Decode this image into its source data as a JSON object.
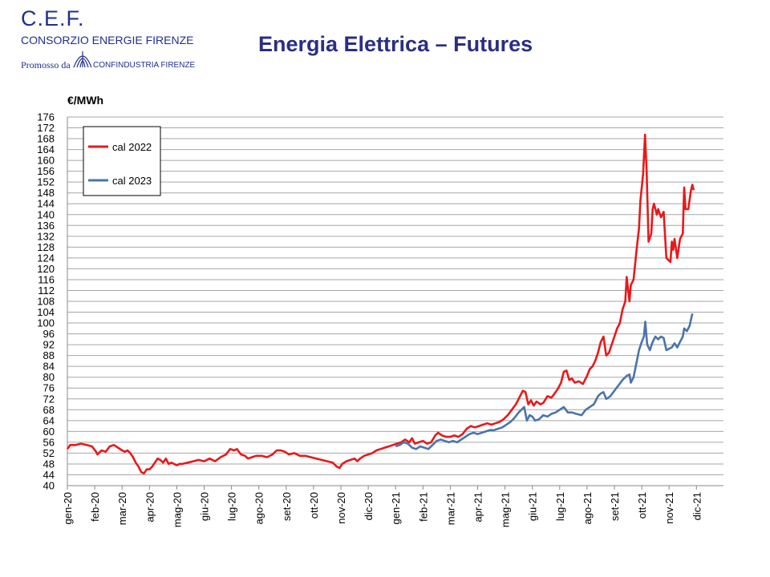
{
  "header": {
    "org_short": "C.E.F.",
    "org_full": "CONSORZIO ENERGIE FIRENZE",
    "promoted_by": "Promosso da",
    "sponsor": "CONFINDUSTRIA FIRENZE"
  },
  "slide_title": "Energia Elettrica – Futures",
  "chart_data": {
    "type": "line",
    "ylabel": "€/MWh",
    "ylim": [
      40,
      176
    ],
    "ytick_step": 4,
    "grid": true,
    "legend_position": "top-left",
    "x_ticks": [
      "gen-20",
      "feb-20",
      "mar-20",
      "apr-20",
      "mag-20",
      "giu-20",
      "lug-20",
      "ago-20",
      "set-20",
      "ott-20",
      "nov-20",
      "dic-20",
      "gen-21",
      "feb-21",
      "mar-21",
      "apr-21",
      "mag-21",
      "giu-21",
      "lug-21",
      "ago-21",
      "set-21",
      "ott-21",
      "nov-21",
      "dic-21"
    ],
    "series": [
      {
        "name": "cal 2022",
        "color": "#e8191b",
        "points": [
          [
            0,
            53.5
          ],
          [
            0.1,
            55
          ],
          [
            0.3,
            55
          ],
          [
            0.5,
            55.5
          ],
          [
            0.7,
            55
          ],
          [
            0.9,
            54.5
          ],
          [
            1.05,
            52.5
          ],
          [
            1.1,
            51.5
          ],
          [
            1.25,
            53
          ],
          [
            1.4,
            52.5
          ],
          [
            1.55,
            54.5
          ],
          [
            1.7,
            55
          ],
          [
            1.85,
            54
          ],
          [
            2.0,
            53
          ],
          [
            2.1,
            52.5
          ],
          [
            2.2,
            53
          ],
          [
            2.3,
            52
          ],
          [
            2.4,
            50.5
          ],
          [
            2.5,
            48.5
          ],
          [
            2.6,
            47
          ],
          [
            2.7,
            45
          ],
          [
            2.8,
            44.5
          ],
          [
            2.9,
            46
          ],
          [
            3.0,
            46
          ],
          [
            3.1,
            47
          ],
          [
            3.2,
            48.5
          ],
          [
            3.3,
            50
          ],
          [
            3.4,
            49.5
          ],
          [
            3.5,
            48.5
          ],
          [
            3.6,
            50
          ],
          [
            3.7,
            48
          ],
          [
            3.8,
            48.5
          ],
          [
            3.9,
            48
          ],
          [
            4.0,
            47.5
          ],
          [
            4.1,
            48
          ],
          [
            4.2,
            48
          ],
          [
            4.4,
            48.5
          ],
          [
            4.6,
            49
          ],
          [
            4.8,
            49.5
          ],
          [
            5.0,
            49
          ],
          [
            5.2,
            50
          ],
          [
            5.4,
            49
          ],
          [
            5.6,
            50.5
          ],
          [
            5.8,
            51.5
          ],
          [
            5.95,
            53.5
          ],
          [
            6.1,
            53
          ],
          [
            6.2,
            53.5
          ],
          [
            6.35,
            51.5
          ],
          [
            6.5,
            51
          ],
          [
            6.6,
            50
          ],
          [
            6.75,
            50.5
          ],
          [
            6.9,
            51
          ],
          [
            7.1,
            51
          ],
          [
            7.3,
            50.5
          ],
          [
            7.5,
            51.5
          ],
          [
            7.65,
            53
          ],
          [
            7.8,
            53
          ],
          [
            7.95,
            52.5
          ],
          [
            8.1,
            51.5
          ],
          [
            8.3,
            52
          ],
          [
            8.5,
            51
          ],
          [
            8.7,
            51
          ],
          [
            8.9,
            50.5
          ],
          [
            9.1,
            50
          ],
          [
            9.3,
            49.5
          ],
          [
            9.5,
            49
          ],
          [
            9.7,
            48.5
          ],
          [
            9.85,
            47
          ],
          [
            9.95,
            46.5
          ],
          [
            10.05,
            48
          ],
          [
            10.2,
            49
          ],
          [
            10.35,
            49.5
          ],
          [
            10.5,
            50
          ],
          [
            10.6,
            49
          ],
          [
            10.7,
            50
          ],
          [
            10.85,
            51
          ],
          [
            11.0,
            51.5
          ],
          [
            11.15,
            52
          ],
          [
            11.3,
            53
          ],
          [
            11.45,
            53.5
          ],
          [
            11.6,
            54
          ],
          [
            11.75,
            54.5
          ],
          [
            11.9,
            55
          ],
          [
            12.05,
            55.5
          ],
          [
            12.2,
            56
          ],
          [
            12.35,
            57
          ],
          [
            12.5,
            56
          ],
          [
            12.6,
            57.5
          ],
          [
            12.7,
            55.5
          ],
          [
            12.85,
            56
          ],
          [
            13.0,
            56.5
          ],
          [
            13.15,
            55.5
          ],
          [
            13.3,
            56
          ],
          [
            13.45,
            58.5
          ],
          [
            13.55,
            59.5
          ],
          [
            13.7,
            58.5
          ],
          [
            13.85,
            58
          ],
          [
            14.0,
            58
          ],
          [
            14.15,
            58.5
          ],
          [
            14.3,
            58
          ],
          [
            14.45,
            59
          ],
          [
            14.6,
            61
          ],
          [
            14.75,
            62
          ],
          [
            14.9,
            61.5
          ],
          [
            15.05,
            62
          ],
          [
            15.2,
            62.5
          ],
          [
            15.35,
            63
          ],
          [
            15.5,
            62.5
          ],
          [
            15.65,
            63
          ],
          [
            15.8,
            63.5
          ],
          [
            15.95,
            64.5
          ],
          [
            16.1,
            66
          ],
          [
            16.25,
            68
          ],
          [
            16.4,
            70
          ],
          [
            16.55,
            73
          ],
          [
            16.65,
            75
          ],
          [
            16.75,
            74.5
          ],
          [
            16.85,
            70
          ],
          [
            16.95,
            71.5
          ],
          [
            17.05,
            69.5
          ],
          [
            17.15,
            71
          ],
          [
            17.3,
            70
          ],
          [
            17.4,
            70.5
          ],
          [
            17.55,
            73
          ],
          [
            17.7,
            72.5
          ],
          [
            17.85,
            74.5
          ],
          [
            17.95,
            76
          ],
          [
            18.05,
            78
          ],
          [
            18.15,
            82
          ],
          [
            18.25,
            82.5
          ],
          [
            18.35,
            79
          ],
          [
            18.45,
            79.5
          ],
          [
            18.55,
            78
          ],
          [
            18.7,
            78.5
          ],
          [
            18.85,
            77.5
          ],
          [
            19.0,
            80.5
          ],
          [
            19.1,
            83
          ],
          [
            19.2,
            84
          ],
          [
            19.3,
            86
          ],
          [
            19.4,
            89
          ],
          [
            19.5,
            93
          ],
          [
            19.6,
            95
          ],
          [
            19.7,
            88
          ],
          [
            19.8,
            89
          ],
          [
            19.9,
            92
          ],
          [
            20.0,
            95
          ],
          [
            20.1,
            98
          ],
          [
            20.2,
            100
          ],
          [
            20.3,
            105
          ],
          [
            20.4,
            108
          ],
          [
            20.45,
            117
          ],
          [
            20.55,
            108
          ],
          [
            20.6,
            114
          ],
          [
            20.7,
            116
          ],
          [
            20.8,
            126
          ],
          [
            20.9,
            135
          ],
          [
            20.95,
            145
          ],
          [
            21.05,
            155
          ],
          [
            21.12,
            169.5
          ],
          [
            21.18,
            156
          ],
          [
            21.25,
            130
          ],
          [
            21.35,
            133
          ],
          [
            21.4,
            142
          ],
          [
            21.45,
            144
          ],
          [
            21.55,
            140
          ],
          [
            21.6,
            142
          ],
          [
            21.7,
            139
          ],
          [
            21.8,
            141
          ],
          [
            21.9,
            124
          ],
          [
            22.0,
            123
          ],
          [
            22.05,
            122.5
          ],
          [
            22.1,
            130
          ],
          [
            22.15,
            127
          ],
          [
            22.2,
            131
          ],
          [
            22.3,
            124
          ],
          [
            22.4,
            131
          ],
          [
            22.5,
            133
          ],
          [
            22.55,
            150
          ],
          [
            22.6,
            142
          ],
          [
            22.7,
            142
          ],
          [
            22.8,
            149
          ],
          [
            22.85,
            151
          ],
          [
            22.9,
            149
          ]
        ]
      },
      {
        "name": "cal 2023",
        "color": "#4a74aa",
        "points": [
          [
            12.0,
            54.5
          ],
          [
            12.15,
            55
          ],
          [
            12.3,
            56
          ],
          [
            12.45,
            55.5
          ],
          [
            12.6,
            54
          ],
          [
            12.75,
            53.5
          ],
          [
            12.9,
            54.5
          ],
          [
            13.05,
            54
          ],
          [
            13.2,
            53.5
          ],
          [
            13.35,
            55
          ],
          [
            13.5,
            56.5
          ],
          [
            13.65,
            57
          ],
          [
            13.8,
            56.5
          ],
          [
            13.95,
            56
          ],
          [
            14.1,
            56.5
          ],
          [
            14.25,
            56
          ],
          [
            14.4,
            57
          ],
          [
            14.55,
            58
          ],
          [
            14.7,
            59
          ],
          [
            14.85,
            59.5
          ],
          [
            15.0,
            59
          ],
          [
            15.15,
            59.5
          ],
          [
            15.3,
            60
          ],
          [
            15.45,
            60.5
          ],
          [
            15.6,
            60.5
          ],
          [
            15.75,
            61
          ],
          [
            15.9,
            61.5
          ],
          [
            16.05,
            62.5
          ],
          [
            16.2,
            63.5
          ],
          [
            16.35,
            65
          ],
          [
            16.5,
            67
          ],
          [
            16.6,
            68
          ],
          [
            16.7,
            69
          ],
          [
            16.8,
            64
          ],
          [
            16.9,
            66
          ],
          [
            17.0,
            65.5
          ],
          [
            17.1,
            64
          ],
          [
            17.25,
            64.5
          ],
          [
            17.4,
            66
          ],
          [
            17.55,
            65.5
          ],
          [
            17.7,
            66.5
          ],
          [
            17.85,
            67
          ],
          [
            18.0,
            68
          ],
          [
            18.15,
            69
          ],
          [
            18.3,
            67
          ],
          [
            18.45,
            67
          ],
          [
            18.6,
            66.5
          ],
          [
            18.8,
            66
          ],
          [
            18.95,
            68
          ],
          [
            19.1,
            69
          ],
          [
            19.25,
            70
          ],
          [
            19.4,
            73
          ],
          [
            19.5,
            74
          ],
          [
            19.6,
            74.5
          ],
          [
            19.7,
            72
          ],
          [
            19.85,
            73
          ],
          [
            20.0,
            75
          ],
          [
            20.15,
            77
          ],
          [
            20.3,
            79
          ],
          [
            20.45,
            80.5
          ],
          [
            20.55,
            81
          ],
          [
            20.6,
            78
          ],
          [
            20.7,
            80
          ],
          [
            20.8,
            85
          ],
          [
            20.9,
            90
          ],
          [
            21.0,
            93
          ],
          [
            21.08,
            95
          ],
          [
            21.13,
            100.5
          ],
          [
            21.2,
            92
          ],
          [
            21.3,
            90
          ],
          [
            21.4,
            93
          ],
          [
            21.5,
            95
          ],
          [
            21.6,
            94
          ],
          [
            21.7,
            95
          ],
          [
            21.8,
            94.5
          ],
          [
            21.9,
            90
          ],
          [
            22.0,
            90.5
          ],
          [
            22.1,
            91
          ],
          [
            22.2,
            92.5
          ],
          [
            22.3,
            91
          ],
          [
            22.4,
            93
          ],
          [
            22.5,
            95
          ],
          [
            22.55,
            98
          ],
          [
            22.65,
            97
          ],
          [
            22.75,
            99
          ],
          [
            22.85,
            103.5
          ]
        ]
      }
    ]
  }
}
